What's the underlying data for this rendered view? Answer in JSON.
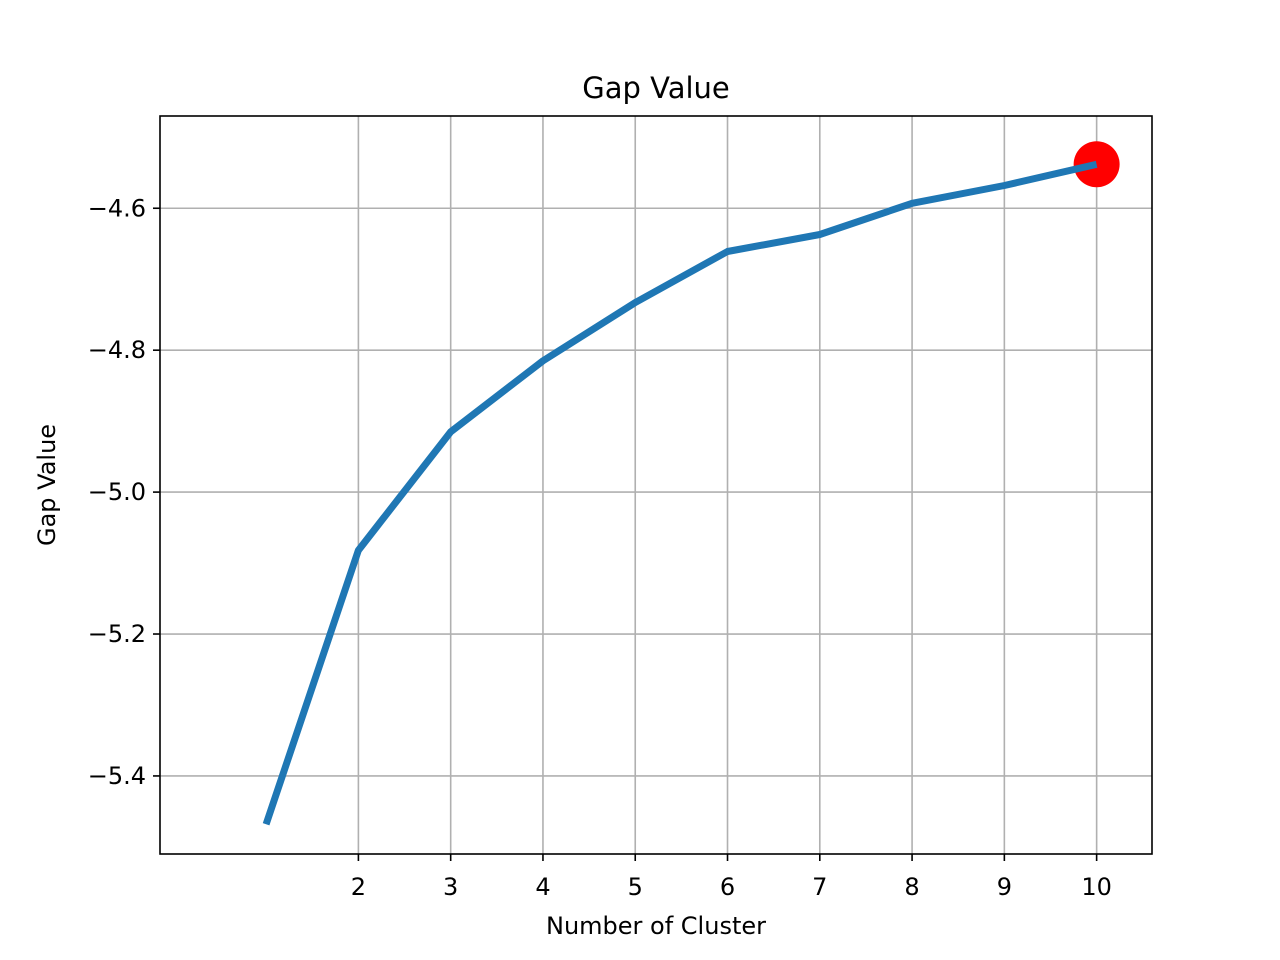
{
  "chart_data": {
    "type": "line",
    "title": "Gap Value",
    "xlabel": "Number of Cluster",
    "ylabel": "Gap Value",
    "x": [
      1,
      2,
      3,
      4,
      5,
      6,
      7,
      8,
      9,
      10
    ],
    "x_ticks": [
      2,
      3,
      4,
      5,
      6,
      7,
      8,
      9,
      10
    ],
    "x_tick_labels": [
      "2",
      "3",
      "4",
      "5",
      "6",
      "7",
      "8",
      "9",
      "10"
    ],
    "y_ticks": [
      -4.6,
      -4.8,
      -5.0,
      -5.2,
      -5.4
    ],
    "y_tick_labels": [
      "−4.6",
      "−4.8",
      "−5.0",
      "−5.2",
      "−5.4"
    ],
    "xlim": [
      -0.15,
      10.6
    ],
    "ylim": [
      -5.51,
      -4.47
    ],
    "grid": true,
    "series": [
      {
        "values": [
          -5.468,
          -5.082,
          -4.915,
          -4.815,
          -4.733,
          -4.661,
          -4.637,
          -4.593,
          -4.568,
          -4.538
        ],
        "color": "#1f77b4"
      }
    ],
    "highlight": {
      "x": 10,
      "y": -4.538,
      "color": "#ff0000"
    },
    "colors": {
      "grid": "#b0b0b0",
      "axes": "#000000"
    }
  }
}
